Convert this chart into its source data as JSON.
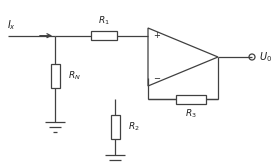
{
  "bg_color": "#ffffff",
  "line_color": "#404040",
  "text_color": "#202020",
  "fig_width": 2.79,
  "fig_height": 1.64,
  "dpi": 100,
  "Ix_label": "$I_x$",
  "RN_label": "$R_N$",
  "R1_label": "$R_1$",
  "R2_label": "$R_2$",
  "R3_label": "$R_3$",
  "U0_label": "$U_0$",
  "plus_label": "+",
  "minus_label": "−"
}
